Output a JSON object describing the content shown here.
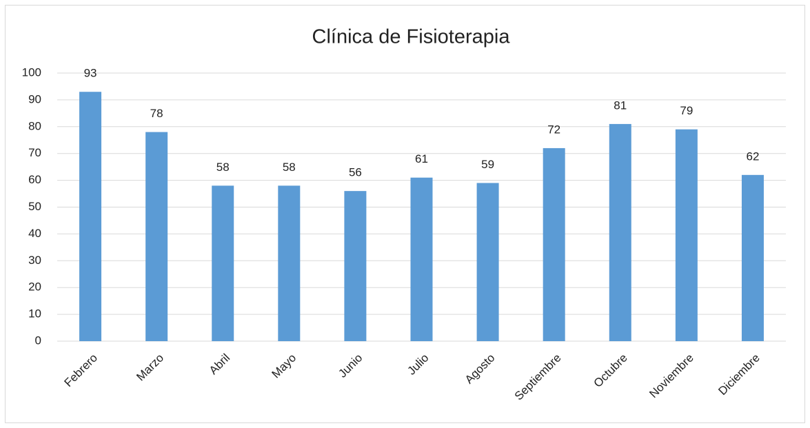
{
  "chart_data": {
    "type": "bar",
    "title": "Clínica de Fisioterapia",
    "categories": [
      "Febrero",
      "Marzo",
      "Abril",
      "Mayo",
      "Junio",
      "Julio",
      "Agosto",
      "Septiembre",
      "Octubre",
      "Noviembre",
      "Diciembre"
    ],
    "values": [
      93,
      78,
      58,
      58,
      56,
      61,
      59,
      72,
      81,
      79,
      62
    ],
    "color": "#5b9bd5",
    "ylim": [
      0,
      100
    ],
    "yticks": [
      0,
      10,
      20,
      30,
      40,
      50,
      60,
      70,
      80,
      90,
      100
    ],
    "grid": true,
    "data_labels": true
  }
}
